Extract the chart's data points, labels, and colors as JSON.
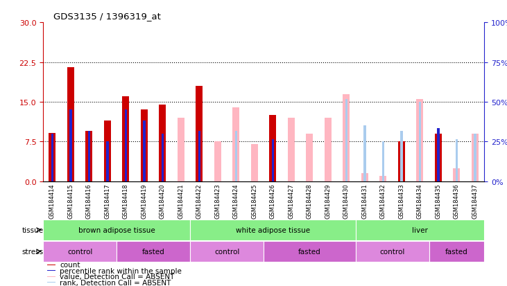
{
  "title": "GDS3135 / 1396319_at",
  "samples": [
    "GSM184414",
    "GSM184415",
    "GSM184416",
    "GSM184417",
    "GSM184418",
    "GSM184419",
    "GSM184420",
    "GSM184421",
    "GSM184422",
    "GSM184423",
    "GSM184424",
    "GSM184425",
    "GSM184426",
    "GSM184427",
    "GSM184428",
    "GSM184429",
    "GSM184430",
    "GSM184431",
    "GSM184432",
    "GSM184433",
    "GSM184434",
    "GSM184435",
    "GSM184436",
    "GSM184437"
  ],
  "red_values": [
    9.1,
    21.5,
    9.5,
    11.5,
    16.0,
    13.5,
    14.5,
    null,
    18.0,
    null,
    null,
    null,
    12.5,
    null,
    null,
    null,
    null,
    null,
    null,
    7.5,
    null,
    9.0,
    null,
    null
  ],
  "blue_values": [
    9.0,
    13.5,
    9.5,
    7.5,
    13.5,
    11.5,
    9.0,
    null,
    9.5,
    null,
    null,
    null,
    8.0,
    null,
    null,
    null,
    null,
    null,
    null,
    9.0,
    null,
    10.0,
    null,
    null
  ],
  "pink_values": [
    null,
    null,
    null,
    null,
    null,
    null,
    null,
    12.0,
    null,
    7.5,
    14.0,
    7.0,
    null,
    12.0,
    9.0,
    12.0,
    16.5,
    1.5,
    1.0,
    null,
    15.5,
    null,
    2.5,
    9.0
  ],
  "lightblue_values": [
    null,
    null,
    null,
    null,
    null,
    null,
    null,
    null,
    null,
    null,
    9.5,
    null,
    null,
    null,
    null,
    null,
    15.5,
    10.5,
    7.5,
    9.5,
    15.0,
    null,
    8.0,
    9.0
  ],
  "ylim_left": [
    0,
    30
  ],
  "ylim_right": [
    0,
    100
  ],
  "yticks_left": [
    0,
    7.5,
    15,
    22.5,
    30
  ],
  "yticks_right": [
    0,
    25,
    50,
    75,
    100
  ],
  "tissue_groups": [
    {
      "label": "brown adipose tissue",
      "start": 0,
      "end": 8
    },
    {
      "label": "white adipose tissue",
      "start": 8,
      "end": 17
    },
    {
      "label": "liver",
      "start": 17,
      "end": 24
    }
  ],
  "stress_groups": [
    {
      "label": "control",
      "start": 0,
      "end": 4
    },
    {
      "label": "fasted",
      "start": 4,
      "end": 8
    },
    {
      "label": "control",
      "start": 8,
      "end": 12
    },
    {
      "label": "fasted",
      "start": 12,
      "end": 17
    },
    {
      "label": "control",
      "start": 17,
      "end": 21
    },
    {
      "label": "fasted",
      "start": 21,
      "end": 24
    }
  ],
  "red_color": "#CC0000",
  "blue_color": "#2222CC",
  "pink_color": "#FFB6C1",
  "lightblue_color": "#AACCEE",
  "tissue_color": "#88EE88",
  "stress_color_1": "#DD88DD",
  "stress_color_2": "#CC66CC",
  "xticklabel_bg": "#C8C8C8",
  "plot_bg": "#FFFFFF"
}
